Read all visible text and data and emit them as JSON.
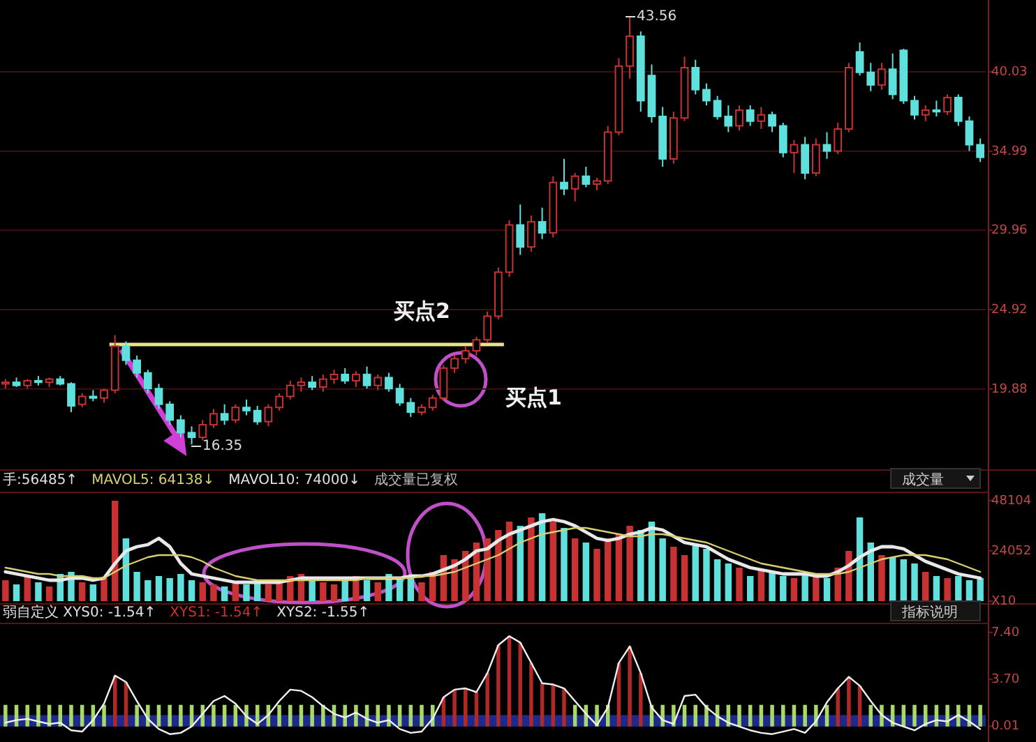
{
  "chart_data": [
    {
      "type": "candlestick",
      "categories": [
        null,
        null,
        null,
        null,
        null,
        null,
        null,
        null,
        null,
        null,
        null,
        null,
        null,
        null,
        null,
        null,
        null,
        null,
        null,
        null,
        null,
        null,
        null,
        null,
        null,
        null,
        null,
        null,
        null,
        null,
        null,
        null,
        null,
        null,
        null,
        null,
        null,
        null,
        null,
        null,
        null,
        null,
        null,
        null,
        null,
        null,
        null,
        null,
        null,
        null,
        null,
        null,
        null,
        null,
        null,
        null,
        null,
        null,
        null,
        null,
        null,
        null,
        null,
        null,
        null,
        null,
        null,
        null,
        null,
        null,
        null,
        null,
        null,
        null,
        null,
        null,
        null,
        null,
        null,
        null,
        null,
        null,
        null,
        null,
        null,
        null,
        null,
        null,
        null,
        null
      ],
      "ohlc": [
        [
          20.2,
          20.5,
          19.9,
          20.3
        ],
        [
          20.3,
          20.6,
          20.0,
          20.1
        ],
        [
          20.1,
          20.5,
          19.9,
          20.4
        ],
        [
          20.4,
          20.7,
          20.1,
          20.3
        ],
        [
          20.3,
          20.6,
          20.0,
          20.5
        ],
        [
          20.5,
          20.7,
          20.1,
          20.2
        ],
        [
          20.2,
          20.3,
          18.4,
          18.8
        ],
        [
          18.9,
          19.6,
          18.7,
          19.4
        ],
        [
          19.4,
          19.8,
          19.1,
          19.3
        ],
        [
          19.3,
          19.9,
          19.0,
          19.8
        ],
        [
          19.8,
          23.3,
          19.6,
          22.6
        ],
        [
          22.6,
          22.9,
          21.4,
          21.7
        ],
        [
          21.7,
          22.0,
          20.6,
          20.9
        ],
        [
          20.9,
          21.1,
          19.6,
          19.9
        ],
        [
          19.9,
          20.2,
          18.6,
          18.9
        ],
        [
          18.9,
          19.1,
          17.6,
          17.9
        ],
        [
          17.9,
          18.2,
          16.8,
          17.1
        ],
        [
          17.1,
          17.5,
          16.35,
          16.8
        ],
        [
          16.8,
          17.9,
          16.6,
          17.6
        ],
        [
          17.6,
          18.6,
          17.4,
          18.3
        ],
        [
          18.3,
          18.9,
          17.6,
          17.9
        ],
        [
          17.9,
          18.9,
          17.7,
          18.7
        ],
        [
          18.7,
          19.2,
          18.2,
          18.5
        ],
        [
          18.5,
          18.8,
          17.6,
          17.8
        ],
        [
          17.8,
          18.9,
          17.5,
          18.7
        ],
        [
          18.7,
          19.6,
          18.5,
          19.4
        ],
        [
          19.4,
          20.4,
          19.2,
          20.1
        ],
        [
          20.1,
          20.6,
          19.7,
          20.3
        ],
        [
          20.3,
          20.7,
          19.8,
          20.0
        ],
        [
          20.0,
          20.8,
          19.7,
          20.5
        ],
        [
          20.5,
          21.1,
          20.2,
          20.8
        ],
        [
          20.8,
          21.2,
          20.2,
          20.4
        ],
        [
          20.4,
          21.0,
          20.0,
          20.8
        ],
        [
          20.8,
          21.3,
          19.9,
          20.1
        ],
        [
          20.1,
          20.8,
          19.8,
          20.6
        ],
        [
          20.6,
          20.9,
          19.7,
          19.9
        ],
        [
          19.9,
          20.2,
          18.8,
          19.0
        ],
        [
          19.0,
          19.3,
          18.1,
          18.4
        ],
        [
          18.4,
          18.9,
          18.2,
          18.7
        ],
        [
          18.7,
          19.5,
          18.5,
          19.3
        ],
        [
          19.3,
          21.4,
          19.1,
          21.2
        ],
        [
          21.2,
          22.0,
          20.9,
          21.8
        ],
        [
          21.8,
          22.6,
          21.5,
          22.3
        ],
        [
          22.3,
          23.2,
          22.0,
          23.0
        ],
        [
          23.0,
          24.8,
          22.8,
          24.5
        ],
        [
          24.5,
          27.6,
          24.3,
          27.3
        ],
        [
          27.3,
          30.6,
          27.0,
          30.3
        ],
        [
          30.3,
          31.6,
          28.4,
          28.9
        ],
        [
          28.9,
          30.9,
          28.6,
          30.5
        ],
        [
          30.5,
          31.4,
          29.4,
          29.8
        ],
        [
          29.8,
          33.4,
          29.5,
          33.0
        ],
        [
          33.0,
          34.5,
          32.2,
          32.6
        ],
        [
          32.6,
          33.6,
          31.8,
          33.4
        ],
        [
          33.4,
          34.0,
          32.7,
          32.9
        ],
        [
          32.9,
          33.3,
          32.5,
          33.1
        ],
        [
          33.1,
          36.6,
          32.9,
          36.2
        ],
        [
          36.2,
          40.9,
          36.0,
          40.4
        ],
        [
          40.4,
          43.56,
          39.6,
          42.3
        ],
        [
          42.3,
          42.6,
          37.5,
          38.2
        ],
        [
          39.8,
          40.5,
          36.8,
          37.2
        ],
        [
          37.2,
          37.8,
          34.0,
          34.5
        ],
        [
          34.5,
          37.5,
          34.2,
          37.1
        ],
        [
          37.1,
          41.0,
          36.9,
          40.3
        ],
        [
          40.3,
          40.8,
          38.6,
          38.9
        ],
        [
          38.9,
          39.3,
          37.9,
          38.2
        ],
        [
          38.2,
          38.5,
          37.0,
          37.2
        ],
        [
          37.2,
          37.9,
          36.2,
          36.6
        ],
        [
          36.6,
          37.9,
          36.3,
          37.6
        ],
        [
          37.6,
          37.9,
          36.6,
          36.9
        ],
        [
          36.9,
          37.8,
          36.4,
          37.3
        ],
        [
          37.3,
          37.5,
          36.2,
          36.6
        ],
        [
          36.6,
          36.8,
          34.6,
          34.9
        ],
        [
          34.9,
          35.7,
          33.6,
          35.4
        ],
        [
          35.4,
          35.9,
          33.2,
          33.6
        ],
        [
          33.6,
          35.8,
          33.4,
          35.4
        ],
        [
          35.4,
          36.2,
          34.5,
          35.0
        ],
        [
          35.0,
          36.8,
          34.8,
          36.4
        ],
        [
          36.4,
          40.6,
          36.2,
          40.3
        ],
        [
          41.3,
          41.9,
          39.8,
          40.0
        ],
        [
          40.0,
          40.6,
          38.8,
          39.2
        ],
        [
          39.2,
          40.6,
          38.9,
          40.2
        ],
        [
          40.2,
          41.2,
          38.3,
          38.6
        ],
        [
          41.4,
          41.5,
          38.0,
          38.2
        ],
        [
          38.2,
          38.5,
          37.0,
          37.3
        ],
        [
          37.3,
          37.9,
          36.9,
          37.6
        ],
        [
          37.6,
          38.2,
          37.2,
          37.5
        ],
        [
          37.5,
          38.6,
          37.3,
          38.4
        ],
        [
          38.4,
          38.6,
          36.6,
          36.9
        ],
        [
          36.9,
          37.2,
          35.0,
          35.4
        ],
        [
          35.4,
          35.8,
          34.3,
          34.6
        ]
      ],
      "colors": [
        "#c83232",
        "#5fe0dc",
        "#c83232",
        "#5fe0dc",
        "#c83232",
        "#5fe0dc",
        "#5fe0dc",
        "#c83232",
        "#5fe0dc",
        "#c83232",
        "#c83232",
        "#5fe0dc",
        "#5fe0dc",
        "#5fe0dc",
        "#5fe0dc",
        "#5fe0dc",
        "#5fe0dc",
        "#5fe0dc",
        "#c83232",
        "#c83232",
        "#5fe0dc",
        "#c83232",
        "#5fe0dc",
        "#5fe0dc",
        "#c83232",
        "#c83232",
        "#c83232",
        "#c83232",
        "#5fe0dc",
        "#c83232",
        "#c83232",
        "#5fe0dc",
        "#c83232",
        "#5fe0dc",
        "#c83232",
        "#5fe0dc",
        "#5fe0dc",
        "#5fe0dc",
        "#c83232",
        "#c83232",
        "#c83232",
        "#c83232",
        "#c83232",
        "#c83232",
        "#c83232",
        "#c83232",
        "#c83232",
        "#5fe0dc",
        "#c83232",
        "#5fe0dc",
        "#c83232",
        "#5fe0dc",
        "#c83232",
        "#5fe0dc",
        "#c83232",
        "#c83232",
        "#c83232",
        "#c83232",
        "#5fe0dc",
        "#5fe0dc",
        "#5fe0dc",
        "#c83232",
        "#c83232",
        "#5fe0dc",
        "#5fe0dc",
        "#5fe0dc",
        "#5fe0dc",
        "#c83232",
        "#5fe0dc",
        "#c83232",
        "#5fe0dc",
        "#5fe0dc",
        "#c83232",
        "#5fe0dc",
        "#c83232",
        "#5fe0dc",
        "#c83232",
        "#c83232",
        "#5fe0dc",
        "#5fe0dc",
        "#c83232",
        "#5fe0dc",
        "#5fe0dc",
        "#5fe0dc",
        "#c83232",
        "#5fe0dc",
        "#c83232",
        "#5fe0dc",
        "#5fe0dc",
        "#5fe0dc"
      ],
      "ylim": [
        14.9,
        44.6
      ],
      "yticks": [
        19.88,
        24.92,
        29.96,
        34.99,
        40.03
      ],
      "grid": "y",
      "ref_lines": [
        {
          "axis": "y",
          "value": 22.7,
          "color": "#e8e38a"
        }
      ],
      "annotations": [
        "买点2",
        "买点1",
        "16.35",
        "43.56"
      ]
    },
    {
      "type": "bar",
      "categories": [
        null,
        null,
        null,
        null,
        null,
        null,
        null,
        null,
        null,
        null,
        null,
        null,
        null,
        null,
        null,
        null,
        null,
        null,
        null,
        null,
        null,
        null,
        null,
        null,
        null,
        null,
        null,
        null,
        null,
        null,
        null,
        null,
        null,
        null,
        null,
        null,
        null,
        null,
        null,
        null,
        null,
        null,
        null,
        null,
        null,
        null,
        null,
        null,
        null,
        null,
        null,
        null,
        null,
        null,
        null,
        null,
        null,
        null,
        null,
        null,
        null,
        null,
        null,
        null,
        null,
        null,
        null,
        null,
        null,
        null,
        null,
        null,
        null,
        null,
        null,
        null,
        null,
        null,
        null,
        null,
        null,
        null,
        null,
        null,
        null,
        null,
        null,
        null,
        null,
        null
      ],
      "series": [
        {
          "type": "bar",
          "values": [
            10000,
            8000,
            12000,
            9000,
            7000,
            13000,
            14000,
            9000,
            8000,
            11000,
            48000,
            30000,
            14000,
            10000,
            12000,
            11000,
            13000,
            10000,
            9000,
            8000,
            7000,
            9000,
            8000,
            10000,
            8000,
            9000,
            12000,
            13000,
            10000,
            9000,
            8000,
            11000,
            12000,
            10000,
            9000,
            13000,
            11000,
            12000,
            9000,
            14000,
            22000,
            20000,
            24000,
            28000,
            30000,
            34000,
            38000,
            36000,
            40000,
            42000,
            38000,
            35000,
            30000,
            28000,
            25000,
            30000,
            32000,
            36000,
            34000,
            38000,
            30000,
            26000,
            22000,
            27000,
            25000,
            20000,
            18000,
            16000,
            12000,
            15000,
            14000,
            12000,
            11000,
            13000,
            12000,
            11000,
            16000,
            24000,
            40000,
            28000,
            22000,
            21000,
            20000,
            18000,
            14000,
            12000,
            11000,
            12000,
            10000,
            11000
          ],
          "colors": [
            "#c83232",
            "#5fe0dc",
            "#c83232",
            "#5fe0dc",
            "#c83232",
            "#5fe0dc",
            "#5fe0dc",
            "#c83232",
            "#5fe0dc",
            "#c83232",
            "#c83232",
            "#5fe0dc",
            "#5fe0dc",
            "#5fe0dc",
            "#5fe0dc",
            "#5fe0dc",
            "#5fe0dc",
            "#5fe0dc",
            "#c83232",
            "#c83232",
            "#5fe0dc",
            "#c83232",
            "#5fe0dc",
            "#5fe0dc",
            "#c83232",
            "#c83232",
            "#c83232",
            "#c83232",
            "#5fe0dc",
            "#c83232",
            "#c83232",
            "#5fe0dc",
            "#c83232",
            "#5fe0dc",
            "#c83232",
            "#5fe0dc",
            "#5fe0dc",
            "#5fe0dc",
            "#c83232",
            "#c83232",
            "#c83232",
            "#c83232",
            "#c83232",
            "#c83232",
            "#c83232",
            "#c83232",
            "#c83232",
            "#5fe0dc",
            "#c83232",
            "#5fe0dc",
            "#c83232",
            "#5fe0dc",
            "#c83232",
            "#5fe0dc",
            "#c83232",
            "#c83232",
            "#c83232",
            "#c83232",
            "#5fe0dc",
            "#5fe0dc",
            "#5fe0dc",
            "#c83232",
            "#c83232",
            "#5fe0dc",
            "#5fe0dc",
            "#5fe0dc",
            "#5fe0dc",
            "#c83232",
            "#5fe0dc",
            "#c83232",
            "#5fe0dc",
            "#5fe0dc",
            "#c83232",
            "#5fe0dc",
            "#c83232",
            "#5fe0dc",
            "#c83232",
            "#c83232",
            "#5fe0dc",
            "#5fe0dc",
            "#c83232",
            "#5fe0dc",
            "#5fe0dc",
            "#5fe0dc",
            "#c83232",
            "#5fe0dc",
            "#c83232",
            "#5fe0dc",
            "#5fe0dc",
            "#5fe0dc"
          ]
        },
        {
          "type": "line",
          "color": "#e8e8e8",
          "values": [
            14000,
            13000,
            12000,
            11000,
            10000,
            10000,
            11000,
            11000,
            10000,
            11000,
            18000,
            24000,
            26000,
            27000,
            30000,
            26000,
            18000,
            13000,
            12000,
            11000,
            10000,
            9000,
            9000,
            9000,
            9000,
            9000,
            10000,
            11000,
            11000,
            11000,
            11000,
            11000,
            11000,
            11000,
            11000,
            11000,
            11000,
            12000,
            12000,
            13000,
            15000,
            17000,
            20000,
            24000,
            25000,
            29000,
            32000,
            34000,
            36000,
            38000,
            39000,
            38000,
            36000,
            33000,
            30000,
            29000,
            30000,
            32000,
            33000,
            35000,
            34000,
            31000,
            28000,
            27000,
            26000,
            23000,
            20000,
            18000,
            16000,
            15000,
            14000,
            13000,
            13000,
            13000,
            12000,
            12000,
            14000,
            17000,
            21000,
            24000,
            26000,
            26000,
            25000,
            22000,
            19000,
            17000,
            15000,
            13000,
            12000,
            11000
          ]
        },
        {
          "type": "line",
          "color": "#d8d070",
          "values": [
            16000,
            15000,
            14000,
            13000,
            13000,
            12000,
            12000,
            12000,
            11000,
            11000,
            14000,
            17000,
            19000,
            21000,
            22000,
            22000,
            22000,
            21000,
            19000,
            16000,
            14000,
            12000,
            11000,
            10000,
            10000,
            10000,
            10000,
            10000,
            10000,
            10000,
            10000,
            10000,
            10000,
            11000,
            11000,
            11000,
            11000,
            11000,
            12000,
            12000,
            13000,
            14000,
            16000,
            18000,
            20000,
            22000,
            25000,
            28000,
            30000,
            32000,
            33000,
            34000,
            35000,
            35000,
            34000,
            33000,
            32000,
            31000,
            31000,
            32000,
            32000,
            31000,
            30000,
            29000,
            28000,
            26000,
            24000,
            22000,
            20000,
            18000,
            17000,
            16000,
            15000,
            14000,
            13000,
            13000,
            13000,
            14000,
            16000,
            18000,
            20000,
            21000,
            22000,
            22000,
            22000,
            21000,
            20000,
            18000,
            16000,
            14000
          ]
        }
      ],
      "ylim": [
        0,
        52000
      ],
      "yticks": [
        {
          "value": 0,
          "label": "X10"
        },
        24052,
        48104
      ],
      "annotations": [
        "手:56485↑",
        "MAVOL5: 64138↓",
        "MAVOL10: 74000↓",
        "成交量已复权",
        "成交量"
      ]
    },
    {
      "type": "line",
      "categories": [
        null,
        null,
        null,
        null,
        null,
        null,
        null,
        null,
        null,
        null,
        null,
        null,
        null,
        null,
        null,
        null,
        null,
        null,
        null,
        null,
        null,
        null,
        null,
        null,
        null,
        null,
        null,
        null,
        null,
        null,
        null,
        null,
        null,
        null,
        null,
        null,
        null,
        null,
        null,
        null,
        null,
        null,
        null,
        null,
        null,
        null,
        null,
        null,
        null,
        null,
        null,
        null,
        null,
        null,
        null,
        null,
        null,
        null,
        null,
        null,
        null,
        null,
        null,
        null,
        null,
        null,
        null,
        null,
        null,
        null,
        null,
        null,
        null,
        null,
        null,
        null,
        null,
        null,
        null,
        null,
        null,
        null,
        null,
        null,
        null,
        null,
        null,
        null,
        null,
        null
      ],
      "series": [
        {
          "type": "bar",
          "color": "#a8d86a",
          "values": [
            1.7,
            1.7,
            1.7,
            1.7,
            1.7,
            1.7,
            1.7,
            1.7,
            1.7,
            1.7,
            null,
            null,
            1.7,
            1.7,
            1.7,
            1.7,
            1.7,
            1.7,
            1.7,
            1.7,
            1.7,
            1.7,
            1.7,
            1.7,
            1.7,
            1.7,
            1.7,
            1.7,
            1.7,
            1.7,
            1.7,
            1.7,
            1.7,
            1.7,
            1.7,
            1.7,
            1.7,
            1.7,
            1.7,
            1.7,
            null,
            null,
            null,
            null,
            null,
            null,
            null,
            null,
            null,
            null,
            null,
            null,
            1.7,
            1.7,
            1.7,
            1.7,
            null,
            null,
            null,
            1.7,
            1.7,
            1.7,
            1.7,
            1.7,
            1.7,
            1.7,
            1.7,
            1.7,
            1.7,
            1.7,
            1.7,
            1.7,
            1.7,
            1.7,
            1.7,
            1.7,
            null,
            null,
            null,
            1.7,
            1.7,
            1.7,
            1.7,
            1.7,
            1.7,
            1.7,
            1.7,
            1.7,
            1.7,
            1.7
          ]
        },
        {
          "type": "bar",
          "color": "#b02828",
          "values": [
            null,
            null,
            null,
            null,
            null,
            null,
            null,
            null,
            null,
            null,
            4.0,
            3.5,
            null,
            null,
            null,
            null,
            null,
            null,
            null,
            null,
            null,
            null,
            null,
            null,
            null,
            null,
            null,
            null,
            null,
            null,
            null,
            null,
            null,
            null,
            null,
            null,
            null,
            null,
            null,
            null,
            2.3,
            2.9,
            3.0,
            2.7,
            4.2,
            6.4,
            7.1,
            6.6,
            5.0,
            3.4,
            3.3,
            3.0,
            null,
            null,
            null,
            null,
            5.0,
            6.3,
            4.2,
            null,
            null,
            null,
            null,
            null,
            null,
            null,
            null,
            null,
            null,
            null,
            null,
            null,
            null,
            null,
            null,
            null,
            3.0,
            3.9,
            3.2,
            null,
            null,
            null,
            null,
            null,
            null,
            null,
            null,
            null,
            null,
            null
          ]
        },
        {
          "type": "line",
          "color": "#f0f0f0",
          "values": [
            0.3,
            0.5,
            0.6,
            0.4,
            0.2,
            0.3,
            -0.3,
            -0.4,
            0.5,
            1.8,
            4.0,
            3.5,
            2.0,
            0.6,
            -0.2,
            -0.6,
            -0.5,
            0.0,
            1.0,
            2.0,
            2.4,
            1.8,
            0.8,
            0.2,
            0.9,
            2.0,
            2.9,
            2.8,
            2.3,
            1.6,
            1.0,
            0.7,
            1.1,
            0.6,
            0.3,
            0.5,
            -0.2,
            -0.5,
            -0.4,
            0.6,
            2.3,
            2.9,
            3.0,
            2.7,
            4.2,
            6.4,
            7.1,
            6.6,
            5.0,
            3.4,
            3.3,
            3.0,
            2.0,
            1.0,
            0.1,
            1.5,
            5.0,
            6.3,
            4.2,
            1.5,
            0.5,
            0.2,
            2.4,
            2.5,
            1.5,
            0.8,
            0.3,
            0.0,
            -0.3,
            -0.5,
            -0.6,
            -0.4,
            -0.2,
            -0.5,
            0.4,
            1.9,
            3.0,
            3.9,
            3.2,
            2.0,
            0.9,
            0.3,
            0.0,
            -0.3,
            0.2,
            0.5,
            0.4,
            0.9,
            0.4,
            -0.2
          ]
        }
      ],
      "ylim": [
        -1,
        8.1
      ],
      "yticks": [
        0.01,
        {
          "value": 3.7,
          "label": "3.70"
        },
        {
          "value": 7.4,
          "label": "7.40"
        }
      ],
      "bands": [
        {
          "axis": "y",
          "from": 0,
          "to": 0.9,
          "color": "#1c2a8c"
        }
      ],
      "annotations": [
        "弱自定义 XYS0: -1.54↑",
        "XYS1: -1.54↑",
        "XYS2: -1.55↑",
        "指标说明"
      ]
    }
  ]
}
